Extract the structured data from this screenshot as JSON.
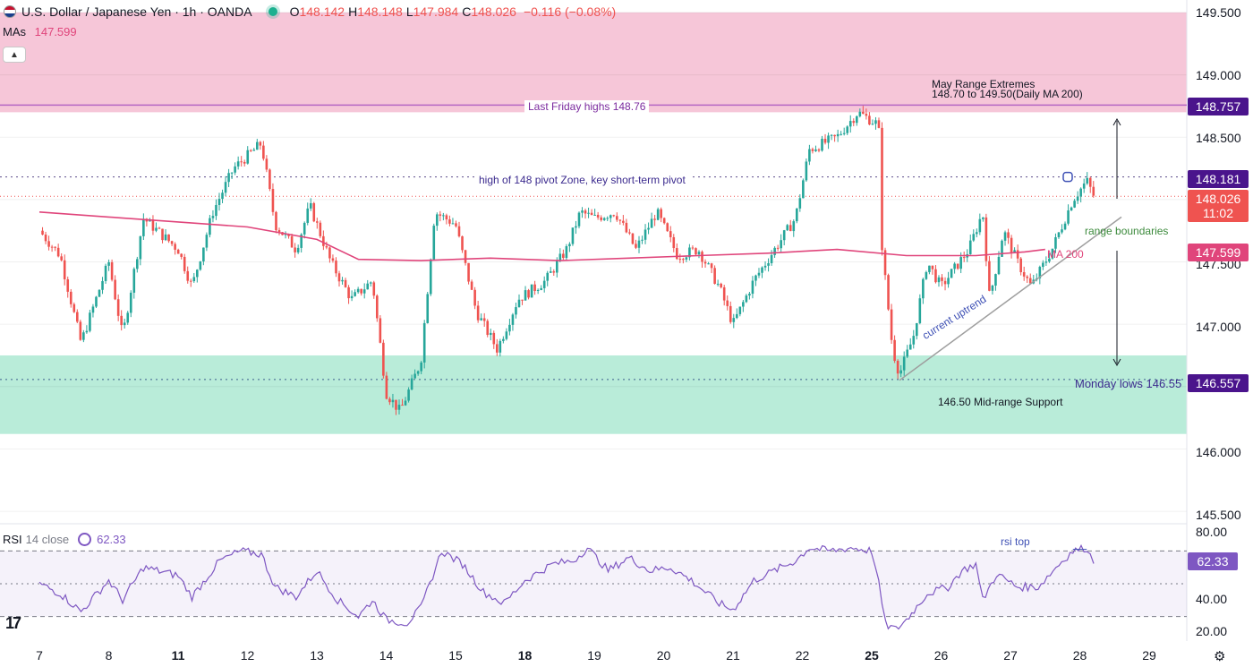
{
  "header": {
    "title": "U.S. Dollar / Japanese Yen · 1h · OANDA",
    "ohlc": [
      {
        "k": "O",
        "v": "148.142"
      },
      {
        "k": "H",
        "v": "148.148"
      },
      {
        "k": "L",
        "v": "147.984"
      },
      {
        "k": "C",
        "v": "148.026"
      }
    ],
    "change": "−0.116 (−0.08%)"
  },
  "ma_legend": {
    "label": "MAs",
    "value": "147.599"
  },
  "collapse_icon": "chevron-up-icon",
  "price_axis": [
    "149.500",
    "149.000",
    "148.500",
    "147.500",
    "147.000",
    "146.000",
    "145.500"
  ],
  "price_tags": {
    "friday_high": "148.757",
    "pivot": "148.181",
    "last": "148.026",
    "countdown": "11:02",
    "ma200": "147.599",
    "monday_low": "146.557"
  },
  "time_axis": [
    {
      "label": "7",
      "bold": false
    },
    {
      "label": "8",
      "bold": false
    },
    {
      "label": "11",
      "bold": true
    },
    {
      "label": "12",
      "bold": false
    },
    {
      "label": "13",
      "bold": false
    },
    {
      "label": "14",
      "bold": false
    },
    {
      "label": "15",
      "bold": false
    },
    {
      "label": "18",
      "bold": true
    },
    {
      "label": "19",
      "bold": false
    },
    {
      "label": "20",
      "bold": false
    },
    {
      "label": "21",
      "bold": false
    },
    {
      "label": "22",
      "bold": false
    },
    {
      "label": "25",
      "bold": true
    },
    {
      "label": "26",
      "bold": false
    },
    {
      "label": "27",
      "bold": false
    },
    {
      "label": "28",
      "bold": false
    },
    {
      "label": "29",
      "bold": false
    }
  ],
  "annotations": {
    "may_range_line1": "May Range Extremes",
    "may_range_line2": "148.70 to 149.50(Daily MA 200)",
    "friday_highs": "Last Friday highs 148.76",
    "pivot_zone": "high of 148 pivot Zone, key short-term pivot",
    "range_boundaries": "range boundaries",
    "ma200": "MA 200",
    "uptrend": "current uptrend",
    "monday_lows": "Monday lows 146.55",
    "support": "146.50 Mid-range Support",
    "rsi_top": "rsi top"
  },
  "rsi": {
    "label": "RSI",
    "params": "14 close",
    "value": "62.33",
    "axis": [
      "80.00",
      "40.00",
      "20.00"
    ]
  },
  "colors": {
    "up": "#26a69a",
    "down": "#ef5350",
    "ma": "#e0457b",
    "resistance_zone": "#f6c6d8",
    "support_zone": "#b9ecd9",
    "rsi_line": "#7e57c2"
  },
  "chart_data": {
    "type": "candlestick",
    "symbol": "USD/JPY",
    "timeframe": "1h",
    "ylim": [
      145.4,
      149.6
    ],
    "zones": [
      {
        "name": "resistance",
        "from": 148.7,
        "to": 149.5
      },
      {
        "name": "support",
        "from": 146.12,
        "to": 146.75
      }
    ],
    "levels": [
      {
        "name": "Last Friday highs",
        "value": 148.757
      },
      {
        "name": "pivot",
        "value": 148.181
      },
      {
        "name": "last close",
        "value": 148.026
      },
      {
        "name": "Monday lows",
        "value": 146.557
      }
    ],
    "ma200_path": [
      {
        "x": 0.0,
        "y": 147.9
      },
      {
        "x": 1.0,
        "y": 147.86
      },
      {
        "x": 2.0,
        "y": 147.82
      },
      {
        "x": 3.0,
        "y": 147.78
      },
      {
        "x": 4.0,
        "y": 147.68
      },
      {
        "x": 4.6,
        "y": 147.52
      },
      {
        "x": 5.5,
        "y": 147.51
      },
      {
        "x": 6.5,
        "y": 147.53
      },
      {
        "x": 7.5,
        "y": 147.51
      },
      {
        "x": 8.5,
        "y": 147.53
      },
      {
        "x": 9.5,
        "y": 147.55
      },
      {
        "x": 10.5,
        "y": 147.57
      },
      {
        "x": 11.5,
        "y": 147.6
      },
      {
        "x": 12.5,
        "y": 147.55
      },
      {
        "x": 13.5,
        "y": 147.55
      },
      {
        "x": 14.2,
        "y": 147.58
      },
      {
        "x": 14.5,
        "y": 147.6
      }
    ],
    "price_path": [
      {
        "x": 0.0,
        "y": 147.75
      },
      {
        "x": 0.3,
        "y": 147.55
      },
      {
        "x": 0.6,
        "y": 146.85
      },
      {
        "x": 1.0,
        "y": 147.5
      },
      {
        "x": 1.2,
        "y": 146.9
      },
      {
        "x": 1.5,
        "y": 147.85
      },
      {
        "x": 2.0,
        "y": 147.6
      },
      {
        "x": 2.2,
        "y": 147.3
      },
      {
        "x": 2.5,
        "y": 147.9
      },
      {
        "x": 2.8,
        "y": 148.25
      },
      {
        "x": 3.2,
        "y": 148.45
      },
      {
        "x": 3.4,
        "y": 147.8
      },
      {
        "x": 3.7,
        "y": 147.6
      },
      {
        "x": 3.9,
        "y": 147.95
      },
      {
        "x": 4.2,
        "y": 147.5
      },
      {
        "x": 4.5,
        "y": 147.2
      },
      {
        "x": 4.8,
        "y": 147.35
      },
      {
        "x": 5.0,
        "y": 146.45
      },
      {
        "x": 5.2,
        "y": 146.3
      },
      {
        "x": 5.35,
        "y": 146.5
      },
      {
        "x": 5.5,
        "y": 146.7
      },
      {
        "x": 5.7,
        "y": 147.9
      },
      {
        "x": 6.0,
        "y": 147.8
      },
      {
        "x": 6.3,
        "y": 147.1
      },
      {
        "x": 6.6,
        "y": 146.8
      },
      {
        "x": 6.9,
        "y": 147.2
      },
      {
        "x": 7.3,
        "y": 147.35
      },
      {
        "x": 7.6,
        "y": 147.6
      },
      {
        "x": 7.8,
        "y": 147.9
      },
      {
        "x": 8.0,
        "y": 147.85
      },
      {
        "x": 8.3,
        "y": 147.9
      },
      {
        "x": 8.6,
        "y": 147.6
      },
      {
        "x": 8.9,
        "y": 147.9
      },
      {
        "x": 9.2,
        "y": 147.55
      },
      {
        "x": 9.5,
        "y": 147.6
      },
      {
        "x": 9.8,
        "y": 147.3
      },
      {
        "x": 10.0,
        "y": 147.0
      },
      {
        "x": 10.3,
        "y": 147.35
      },
      {
        "x": 10.6,
        "y": 147.6
      },
      {
        "x": 10.9,
        "y": 147.85
      },
      {
        "x": 11.1,
        "y": 148.4
      },
      {
        "x": 11.5,
        "y": 148.5
      },
      {
        "x": 11.8,
        "y": 148.7
      },
      {
        "x": 12.1,
        "y": 148.6
      },
      {
        "x": 12.15,
        "y": 147.6
      },
      {
        "x": 12.3,
        "y": 146.8
      },
      {
        "x": 12.4,
        "y": 146.6
      },
      {
        "x": 12.6,
        "y": 146.9
      },
      {
        "x": 12.8,
        "y": 147.5
      },
      {
        "x": 13.0,
        "y": 147.3
      },
      {
        "x": 13.2,
        "y": 147.45
      },
      {
        "x": 13.4,
        "y": 147.6
      },
      {
        "x": 13.6,
        "y": 147.9
      },
      {
        "x": 13.7,
        "y": 147.2
      },
      {
        "x": 13.9,
        "y": 147.75
      },
      {
        "x": 14.1,
        "y": 147.5
      },
      {
        "x": 14.3,
        "y": 147.3
      },
      {
        "x": 14.6,
        "y": 147.6
      },
      {
        "x": 14.9,
        "y": 148.0
      },
      {
        "x": 15.1,
        "y": 148.15
      },
      {
        "x": 15.2,
        "y": 148.03
      }
    ],
    "trendline": [
      {
        "x": 12.4,
        "y": 146.55
      },
      {
        "x": 15.6,
        "y": 147.86
      }
    ],
    "rsi": {
      "ylim": [
        15,
        85
      ],
      "levels": [
        70,
        50,
        30
      ],
      "path": [
        {
          "x": 0.0,
          "y": 50
        },
        {
          "x": 0.3,
          "y": 44
        },
        {
          "x": 0.6,
          "y": 33
        },
        {
          "x": 1.0,
          "y": 52
        },
        {
          "x": 1.2,
          "y": 40
        },
        {
          "x": 1.5,
          "y": 60
        },
        {
          "x": 2.0,
          "y": 55
        },
        {
          "x": 2.2,
          "y": 42
        },
        {
          "x": 2.6,
          "y": 64
        },
        {
          "x": 2.9,
          "y": 70
        },
        {
          "x": 3.2,
          "y": 68
        },
        {
          "x": 3.4,
          "y": 48
        },
        {
          "x": 3.7,
          "y": 42
        },
        {
          "x": 4.0,
          "y": 58
        },
        {
          "x": 4.3,
          "y": 40
        },
        {
          "x": 4.6,
          "y": 30
        },
        {
          "x": 4.8,
          "y": 40
        },
        {
          "x": 5.0,
          "y": 28
        },
        {
          "x": 5.3,
          "y": 26
        },
        {
          "x": 5.5,
          "y": 35
        },
        {
          "x": 5.8,
          "y": 70
        },
        {
          "x": 6.1,
          "y": 62
        },
        {
          "x": 6.4,
          "y": 45
        },
        {
          "x": 6.7,
          "y": 38
        },
        {
          "x": 7.0,
          "y": 52
        },
        {
          "x": 7.4,
          "y": 62
        },
        {
          "x": 7.7,
          "y": 64
        },
        {
          "x": 7.9,
          "y": 72
        },
        {
          "x": 8.2,
          "y": 58
        },
        {
          "x": 8.5,
          "y": 66
        },
        {
          "x": 8.8,
          "y": 58
        },
        {
          "x": 9.1,
          "y": 60
        },
        {
          "x": 9.4,
          "y": 52
        },
        {
          "x": 9.8,
          "y": 38
        },
        {
          "x": 10.0,
          "y": 34
        },
        {
          "x": 10.3,
          "y": 52
        },
        {
          "x": 10.6,
          "y": 58
        },
        {
          "x": 10.9,
          "y": 64
        },
        {
          "x": 11.1,
          "y": 72
        },
        {
          "x": 11.4,
          "y": 70
        },
        {
          "x": 11.7,
          "y": 72
        },
        {
          "x": 12.0,
          "y": 70
        },
        {
          "x": 12.1,
          "y": 50
        },
        {
          "x": 12.2,
          "y": 25
        },
        {
          "x": 12.35,
          "y": 22
        },
        {
          "x": 12.5,
          "y": 28
        },
        {
          "x": 12.8,
          "y": 44
        },
        {
          "x": 13.1,
          "y": 48
        },
        {
          "x": 13.3,
          "y": 58
        },
        {
          "x": 13.5,
          "y": 62
        },
        {
          "x": 13.6,
          "y": 40
        },
        {
          "x": 13.8,
          "y": 56
        },
        {
          "x": 14.1,
          "y": 48
        },
        {
          "x": 14.4,
          "y": 48
        },
        {
          "x": 14.7,
          "y": 62
        },
        {
          "x": 14.9,
          "y": 70
        },
        {
          "x": 15.1,
          "y": 72
        },
        {
          "x": 15.2,
          "y": 62.33
        }
      ]
    }
  }
}
